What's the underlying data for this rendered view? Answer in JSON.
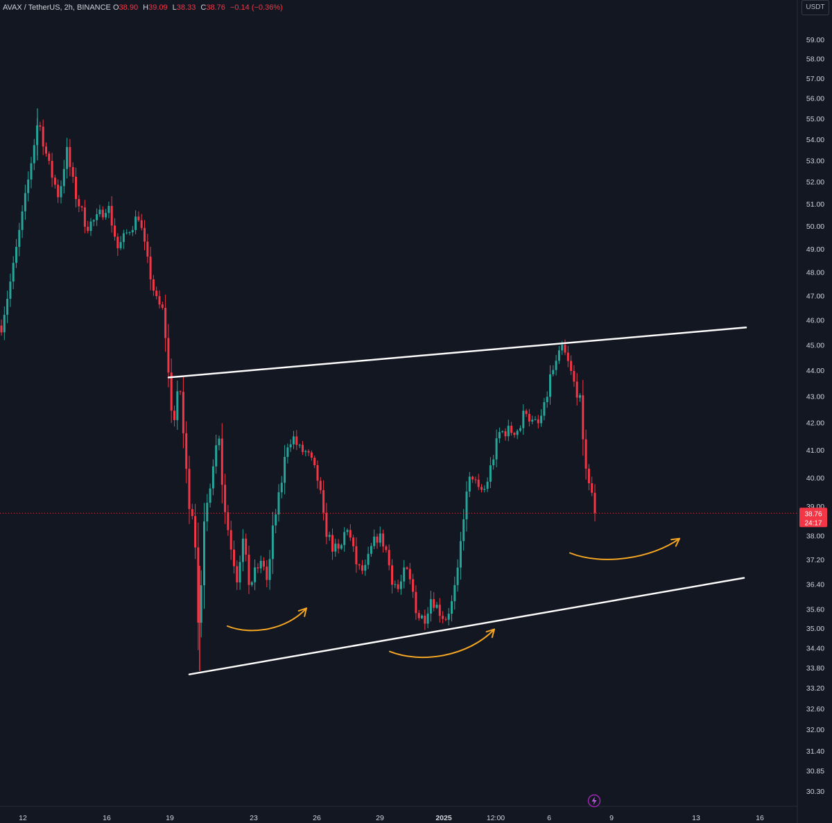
{
  "legend": {
    "symbol": "AVAX / TetherUS, 2h, BINANCE",
    "o_label": "O",
    "o": "38.90",
    "h_label": "H",
    "h": "39.09",
    "l_label": "L",
    "l": "38.33",
    "c_label": "C",
    "c": "38.76",
    "change": "−0.14 (−0.36%)"
  },
  "unit_button": "USDT",
  "price_tag": {
    "price": "38.76",
    "countdown": "24:17"
  },
  "colors": {
    "background": "#131722",
    "up": "#26a69a",
    "down": "#f23645",
    "trendline": "#ffffff",
    "arrow": "#f5a623",
    "axis_text": "#d1d4dc"
  },
  "icons": {
    "bottom_marker": "lightning-bolt-icon"
  },
  "chart_data": {
    "type": "candlestick",
    "x_ticks": [
      "12",
      "16",
      "19",
      "23",
      "26",
      "29",
      "2025",
      "12:00",
      "6",
      "9",
      "13",
      "16"
    ],
    "y_ticks": [
      "59.00",
      "58.00",
      "57.00",
      "56.00",
      "55.00",
      "54.00",
      "53.00",
      "52.00",
      "51.00",
      "50.00",
      "49.00",
      "48.00",
      "47.00",
      "46.00",
      "45.00",
      "44.00",
      "43.00",
      "42.00",
      "41.00",
      "40.00",
      "39.00",
      "38.00",
      "37.20",
      "36.40",
      "35.60",
      "35.00",
      "34.40",
      "33.80",
      "33.20",
      "32.60",
      "32.00",
      "31.40",
      "30.85",
      "30.30"
    ],
    "y_scale": "log",
    "last_price": 38.76,
    "price_path": [
      [
        0,
        45.5
      ],
      [
        18,
        48
      ],
      [
        38,
        51.5
      ],
      [
        55,
        55.0
      ],
      [
        70,
        52.8
      ],
      [
        85,
        51.3
      ],
      [
        96,
        53.5
      ],
      [
        108,
        51.5
      ],
      [
        125,
        50.0
      ],
      [
        140,
        50.3
      ],
      [
        155,
        51.0
      ],
      [
        170,
        49.0
      ],
      [
        185,
        49.8
      ],
      [
        200,
        50.5
      ],
      [
        212,
        48.5
      ],
      [
        225,
        46.8
      ],
      [
        236,
        46.3
      ],
      [
        243,
        43.8
      ],
      [
        250,
        41.8
      ],
      [
        259,
        43.6
      ],
      [
        266,
        41.0
      ],
      [
        272,
        39.2
      ],
      [
        280,
        38.6
      ],
      [
        288,
        34.2
      ],
      [
        292,
        37.8
      ],
      [
        300,
        39.3
      ],
      [
        308,
        40.7
      ],
      [
        316,
        41.6
      ],
      [
        322,
        39.2
      ],
      [
        332,
        37.8
      ],
      [
        342,
        36.6
      ],
      [
        350,
        37.9
      ],
      [
        360,
        36.3
      ],
      [
        370,
        36.9
      ],
      [
        380,
        37.1
      ],
      [
        386,
        36.4
      ],
      [
        394,
        38.3
      ],
      [
        404,
        39.5
      ],
      [
        414,
        41.2
      ],
      [
        422,
        41.5
      ],
      [
        432,
        41.0
      ],
      [
        442,
        40.9
      ],
      [
        450,
        40.5
      ],
      [
        460,
        39.8
      ],
      [
        468,
        38.3
      ],
      [
        480,
        37.6
      ],
      [
        490,
        37.4
      ],
      [
        500,
        38.4
      ],
      [
        508,
        37.6
      ],
      [
        516,
        36.9
      ],
      [
        526,
        36.8
      ],
      [
        536,
        37.6
      ],
      [
        545,
        38.0
      ],
      [
        555,
        37.7
      ],
      [
        565,
        36.6
      ],
      [
        575,
        36.2
      ],
      [
        585,
        36.9
      ],
      [
        595,
        36.2
      ],
      [
        602,
        35.4
      ],
      [
        612,
        35.3
      ],
      [
        622,
        36.0
      ],
      [
        632,
        35.6
      ],
      [
        642,
        35.3
      ],
      [
        652,
        35.8
      ],
      [
        660,
        36.7
      ],
      [
        670,
        39.0
      ],
      [
        680,
        40.2
      ],
      [
        690,
        39.5
      ],
      [
        700,
        39.6
      ],
      [
        710,
        40.6
      ],
      [
        720,
        41.6
      ],
      [
        730,
        41.7
      ],
      [
        740,
        41.7
      ],
      [
        750,
        41.8
      ],
      [
        758,
        42.6
      ],
      [
        766,
        42.0
      ],
      [
        776,
        41.9
      ],
      [
        786,
        42.6
      ],
      [
        794,
        43.8
      ],
      [
        802,
        44.2
      ],
      [
        811,
        44.9
      ],
      [
        820,
        44.2
      ],
      [
        830,
        43.3
      ],
      [
        836,
        43.0
      ],
      [
        840,
        41.3
      ],
      [
        848,
        40.0
      ],
      [
        854,
        39.3
      ],
      [
        858,
        38.76
      ]
    ],
    "candle_count": 200,
    "trendlines": [
      {
        "name": "upper-channel-line",
        "start": [
          243,
          43.72
        ],
        "end": [
          1076,
          45.7
        ]
      },
      {
        "name": "lower-channel-line",
        "start": [
          273,
          33.6
        ],
        "end": [
          1073,
          36.6
        ]
      }
    ],
    "curved_arrows": [
      {
        "name": "curved-arrow-1",
        "from": [
          328,
          35.07
        ],
        "to": [
          442,
          35.63
        ]
      },
      {
        "name": "curved-arrow-2",
        "from": [
          562,
          34.29
        ],
        "to": [
          713,
          34.97
        ]
      },
      {
        "name": "curved-arrow-3",
        "from": [
          822,
          37.42
        ],
        "to": [
          980,
          37.9
        ]
      }
    ]
  }
}
